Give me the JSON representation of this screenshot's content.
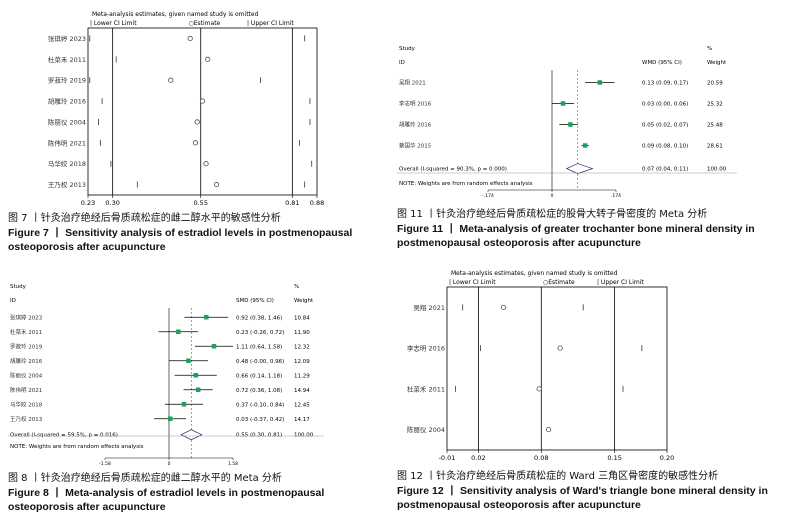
{
  "fig7": {
    "header": {
      "title": "Meta-analysis estimates, given named study is omitted",
      "lower": "| Lower CI Limit",
      "estimate": "○Estimate",
      "upper": "| Upper CI Limit"
    },
    "rows": [
      {
        "study": "张琪婷 2023",
        "lo": 0.235,
        "est": 0.52,
        "hi": 0.845
      },
      {
        "study": "杜菜禾 2011",
        "lo": 0.31,
        "est": 0.57,
        "hi": 0.88
      },
      {
        "study": "罗菽玲 2019",
        "lo": 0.235,
        "est": 0.465,
        "hi": 0.72
      },
      {
        "study": "胡雕玲 2016",
        "lo": 0.27,
        "est": 0.555,
        "hi": 0.86
      },
      {
        "study": "陈丽仪 2004",
        "lo": 0.26,
        "est": 0.54,
        "hi": 0.86
      },
      {
        "study": "陈伟明 2021",
        "lo": 0.265,
        "est": 0.535,
        "hi": 0.83
      },
      {
        "study": "马华姣 2018",
        "lo": 0.295,
        "est": 0.565,
        "hi": 0.865
      },
      {
        "study": "王乃权 2013",
        "lo": 0.37,
        "est": 0.595,
        "hi": 0.845
      }
    ],
    "ticks": [
      "0.23",
      "0.30",
      "0.55",
      "0.81",
      "0.88"
    ],
    "caption_zh": "图 7 丨针灸治疗绝经后骨质疏松症的雌二醇水平的敏感性分析",
    "caption_en": "Figure 7 丨 Sensitivity analysis of estradiol levels in postmenopausal osteoporosis after acupuncture"
  },
  "fig8": {
    "header": {
      "study": "Study",
      "id": "ID",
      "effect": "SMD (95% CI)",
      "pct": "%",
      "weight": "Weight"
    },
    "rows": [
      {
        "study": "张琪婷 2023",
        "est": 0.92,
        "lo": 0.38,
        "hi": 1.46,
        "ci": "0.92 (0.38, 1.46)",
        "w": "10.84"
      },
      {
        "study": "杜菜禾 2011",
        "est": 0.23,
        "lo": -0.26,
        "hi": 0.72,
        "ci": "0.23 (-0.26, 0.72)",
        "w": "11.90"
      },
      {
        "study": "罗菽玲 2019",
        "est": 1.11,
        "lo": 0.64,
        "hi": 1.58,
        "ci": "1.11 (0.64, 1.58)",
        "w": "12.32"
      },
      {
        "study": "胡雕玲 2016",
        "est": 0.48,
        "lo": -0.0,
        "hi": 0.96,
        "ci": "0.48 (-0.00, 0.96)",
        "w": "12.09"
      },
      {
        "study": "陈丽仪 2004",
        "est": 0.66,
        "lo": 0.14,
        "hi": 1.18,
        "ci": "0.66 (0.14, 1.18)",
        "w": "11.29"
      },
      {
        "study": "陈伟明 2021",
        "est": 0.72,
        "lo": 0.36,
        "hi": 1.08,
        "ci": "0.72 (0.36, 1.08)",
        "w": "14.94"
      },
      {
        "study": "马华姣 2018",
        "est": 0.37,
        "lo": -0.1,
        "hi": 0.84,
        "ci": "0.37 (-0.10, 0.84)",
        "w": "12.45"
      },
      {
        "study": "王乃权 2013",
        "est": 0.03,
        "lo": -0.37,
        "hi": 0.42,
        "ci": "0.03 (-0.37, 0.42)",
        "w": "14.17"
      }
    ],
    "overall": {
      "label": "Overall  (I-squared = 59.5%, p = 0.016)",
      "est": 0.55,
      "lo": 0.3,
      "hi": 0.81,
      "ci": "0.55 (0.30, 0.81)",
      "w": "100.00"
    },
    "note": "NOTE: Weights are from random effects analysis",
    "ticks": [
      "-1.58",
      "0",
      "1.58"
    ],
    "caption_zh": "图 8 丨针灸治疗绝经后骨质疏松症的雌二醇水平的 Meta 分析",
    "caption_en": "Figure 8 丨 Meta-analysis of estradiol levels in postmenopausal osteoporosis after acupuncture"
  },
  "fig11": {
    "header": {
      "study": "Study",
      "id": "ID",
      "effect": "WMD (95% CI)",
      "pct": "%",
      "weight": "Weight"
    },
    "rows": [
      {
        "study": "吴翔 2021",
        "est": 0.13,
        "lo": 0.09,
        "hi": 0.17,
        "ci": "0.13 (0.09, 0.17)",
        "w": "20.59"
      },
      {
        "study": "李志明 2016",
        "est": 0.03,
        "lo": 0.0,
        "hi": 0.06,
        "ci": "0.03 (0.00, 0.06)",
        "w": "25.32"
      },
      {
        "study": "胡雕玲 2016",
        "est": 0.05,
        "lo": 0.02,
        "hi": 0.07,
        "ci": "0.05 (0.02, 0.07)",
        "w": "25.48"
      },
      {
        "study": "蔡国华 2015",
        "est": 0.09,
        "lo": 0.08,
        "hi": 0.1,
        "ci": "0.09 (0.08, 0.10)",
        "w": "28.61"
      }
    ],
    "overall": {
      "label": "Overall  (I-squared = 90.3%, p = 0.000)",
      "est": 0.07,
      "lo": 0.04,
      "hi": 0.11,
      "ci": "0.07 (0.04, 0.11)",
      "w": "100.00"
    },
    "note": "NOTE: Weights are from random effects analysis",
    "ticks": [
      "-.174",
      "0",
      ".174"
    ],
    "caption_zh": "图 11 丨针灸治疗绝经后骨质疏松症的股骨大转子骨密度的 Meta 分析",
    "caption_en": "Figure 11 丨 Meta-analysis of greater trochanter bone mineral density in postmenopausal osteoporosis after acupuncture"
  },
  "fig12": {
    "header": {
      "title": "Meta-analysis estimates, given named study is omitted",
      "lower": "| Lower CI Limit",
      "estimate": "○Estimate",
      "upper": "| Upper CI Limit"
    },
    "rows": [
      {
        "study": "吴翔 2021",
        "lo": 0.005,
        "est": 0.044,
        "hi": 0.12
      },
      {
        "study": "李志明 2016",
        "lo": 0.022,
        "est": 0.098,
        "hi": 0.176
      },
      {
        "study": "杜菜禾 2011",
        "lo": -0.002,
        "est": 0.078,
        "hi": 0.158
      },
      {
        "study": "陈丽仪 2004",
        "lo": null,
        "est": 0.087,
        "hi": null
      }
    ],
    "ticks": [
      "-0.01",
      "0.02",
      "0.08",
      "0.15",
      "0.20"
    ],
    "caption_zh": "图 12 丨针灸治疗绝经后骨质疏松症的 Ward 三角区骨密度的敏感性分析",
    "caption_en": "Figure 12 丨 Sensitivity analysis of Ward's triangle bone mineral density in postmenopausal osteoporosis after acupuncture"
  },
  "chart_data": [
    {
      "type": "scatter",
      "title": "Meta-analysis estimates, given named study is omitted",
      "categories": [
        "张琪婷 2023",
        "杜菜禾 2011",
        "罗菽玲 2019",
        "胡雕玲 2016",
        "陈丽仪 2004",
        "陈伟明 2021",
        "马华姣 2018",
        "王乃权 2013"
      ],
      "series": [
        {
          "name": "Lower CI Limit",
          "values": [
            0.235,
            0.31,
            0.235,
            0.27,
            0.26,
            0.265,
            0.295,
            0.37
          ]
        },
        {
          "name": "Estimate",
          "values": [
            0.52,
            0.57,
            0.465,
            0.555,
            0.54,
            0.535,
            0.565,
            0.595
          ]
        },
        {
          "name": "Upper CI Limit",
          "values": [
            0.845,
            0.88,
            0.72,
            0.86,
            0.86,
            0.83,
            0.865,
            0.845
          ]
        }
      ],
      "xticks": [
        0.23,
        0.3,
        0.55,
        0.81,
        0.88
      ],
      "xlim": [
        0.23,
        0.88
      ]
    },
    {
      "type": "scatter",
      "categories": [
        "张琪婷 2023",
        "杜菜禾 2011",
        "罗菽玲 2019",
        "胡雕玲 2016",
        "陈丽仪 2004",
        "陈伟明 2021",
        "马华姣 2018",
        "王乃权 2013",
        "Overall"
      ],
      "series": [
        {
          "name": "SMD",
          "values": [
            0.92,
            0.23,
            1.11,
            0.48,
            0.66,
            0.72,
            0.37,
            0.03,
            0.55
          ]
        },
        {
          "name": "Lower",
          "values": [
            0.38,
            -0.26,
            0.64,
            -0.0,
            0.14,
            0.36,
            -0.1,
            -0.37,
            0.3
          ]
        },
        {
          "name": "Upper",
          "values": [
            1.46,
            0.72,
            1.58,
            0.96,
            1.18,
            1.08,
            0.84,
            0.42,
            0.81
          ]
        },
        {
          "name": "Weight",
          "values": [
            10.84,
            11.9,
            12.32,
            12.09,
            11.29,
            14.94,
            12.45,
            14.17,
            100.0
          ]
        }
      ],
      "xticks": [
        -1.58,
        0,
        1.58
      ],
      "xlim": [
        -1.58,
        1.58
      ]
    },
    {
      "type": "scatter",
      "categories": [
        "吴翔 2021",
        "李志明 2016",
        "胡雕玲 2016",
        "蔡国华 2015",
        "Overall"
      ],
      "series": [
        {
          "name": "WMD",
          "values": [
            0.13,
            0.03,
            0.05,
            0.09,
            0.07
          ]
        },
        {
          "name": "Lower",
          "values": [
            0.09,
            0.0,
            0.02,
            0.08,
            0.04
          ]
        },
        {
          "name": "Upper",
          "values": [
            0.17,
            0.06,
            0.07,
            0.1,
            0.11
          ]
        },
        {
          "name": "Weight",
          "values": [
            20.59,
            25.32,
            25.48,
            28.61,
            100.0
          ]
        }
      ],
      "xticks": [
        -0.174,
        0,
        0.174
      ],
      "xlim": [
        -0.174,
        0.174
      ]
    },
    {
      "type": "scatter",
      "title": "Meta-analysis estimates, given named study is omitted",
      "categories": [
        "吴翔 2021",
        "李志明 2016",
        "杜菜禾 2011",
        "陈丽仪 2004"
      ],
      "series": [
        {
          "name": "Lower CI Limit",
          "values": [
            0.005,
            0.022,
            -0.002,
            null
          ]
        },
        {
          "name": "Estimate",
          "values": [
            0.044,
            0.098,
            0.078,
            0.087
          ]
        },
        {
          "name": "Upper CI Limit",
          "values": [
            0.12,
            0.176,
            0.158,
            null
          ]
        }
      ],
      "xticks": [
        -0.01,
        0.02,
        0.08,
        0.15,
        0.2
      ],
      "xlim": [
        -0.01,
        0.2
      ]
    }
  ]
}
